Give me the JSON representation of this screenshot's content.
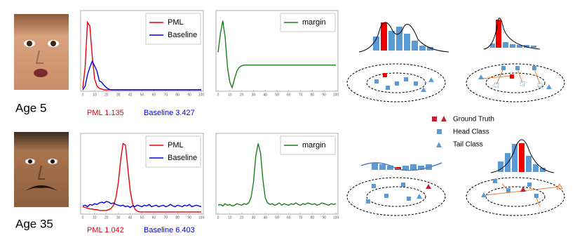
{
  "chart_data": [
    {
      "type": "line",
      "x": [
        0,
        2,
        4,
        6,
        8,
        10,
        12,
        14,
        16,
        18,
        20,
        22,
        24,
        26,
        28,
        30,
        32,
        34,
        36,
        38,
        40,
        42,
        44,
        46,
        48,
        50,
        52,
        54,
        56,
        58,
        60,
        62,
        64,
        66,
        68,
        70,
        72,
        74,
        76,
        78,
        80,
        82,
        84,
        86,
        88,
        90,
        92,
        94,
        96,
        98,
        100
      ],
      "xlim": [
        0,
        100
      ],
      "xticks": [
        0,
        10,
        20,
        30,
        40,
        50,
        60,
        70,
        80,
        90,
        100
      ],
      "ylim": [
        0,
        1
      ],
      "legend": "upper right",
      "series": [
        {
          "name": "PML",
          "color": "#e8000b",
          "values": [
            0.02,
            0.3,
            0.9,
            0.85,
            0.45,
            0.15,
            0.05,
            0.02,
            0.01,
            0,
            0,
            0,
            0,
            0,
            0,
            0,
            0,
            0,
            0,
            0,
            0,
            0,
            0,
            0,
            0,
            0,
            0,
            0,
            0,
            0,
            0,
            0,
            0,
            0,
            0,
            0,
            0,
            0,
            0,
            0,
            0,
            0,
            0,
            0,
            0,
            0,
            0,
            0,
            0,
            0,
            0
          ]
        },
        {
          "name": "Baseline",
          "color": "#0000e0",
          "values": [
            0,
            0.05,
            0.2,
            0.3,
            0.38,
            0.32,
            0.25,
            0.12,
            0.1,
            0.06,
            0.03,
            0.01,
            0,
            0,
            0,
            0,
            0,
            0,
            0,
            0,
            0,
            0,
            0,
            0,
            0,
            0,
            0,
            0,
            0,
            0,
            0,
            0,
            0,
            0,
            0,
            0,
            0,
            0,
            0,
            0,
            0,
            0,
            0,
            0,
            0,
            0,
            0,
            0,
            0,
            0,
            0
          ]
        }
      ]
    },
    {
      "type": "line",
      "x": [
        0,
        2,
        4,
        6,
        8,
        10,
        12,
        14,
        16,
        18,
        20,
        22,
        24,
        26,
        28,
        30,
        32,
        34,
        36,
        38,
        40,
        42,
        44,
        46,
        48,
        50,
        52,
        54,
        56,
        58,
        60,
        62,
        64,
        66,
        68,
        70,
        72,
        74,
        76,
        78,
        80,
        82,
        84,
        86,
        88,
        90,
        92,
        94,
        96,
        98,
        100
      ],
      "xlim": [
        0,
        100
      ],
      "xticks": [
        0,
        10,
        20,
        30,
        40,
        50,
        60,
        70,
        80,
        90,
        100
      ],
      "ylim": [
        0,
        1
      ],
      "legend": "upper right",
      "series": [
        {
          "name": "margin",
          "color": "#1a7f1a",
          "values": [
            0.5,
            0.75,
            0.92,
            0.7,
            0.3,
            0.1,
            0.03,
            0.15,
            0.25,
            0.3,
            0.32,
            0.33,
            0.33,
            0.33,
            0.33,
            0.33,
            0.33,
            0.33,
            0.33,
            0.33,
            0.33,
            0.33,
            0.33,
            0.33,
            0.33,
            0.33,
            0.33,
            0.33,
            0.33,
            0.33,
            0.33,
            0.33,
            0.33,
            0.33,
            0.33,
            0.33,
            0.33,
            0.33,
            0.33,
            0.33,
            0.33,
            0.33,
            0.33,
            0.33,
            0.33,
            0.33,
            0.33,
            0.33,
            0.33,
            0.33,
            0.33
          ]
        }
      ]
    },
    {
      "type": "line",
      "x": [
        0,
        2,
        4,
        6,
        8,
        10,
        12,
        14,
        16,
        18,
        20,
        22,
        24,
        26,
        28,
        30,
        32,
        34,
        36,
        38,
        40,
        42,
        44,
        46,
        48,
        50,
        52,
        54,
        56,
        58,
        60,
        62,
        64,
        66,
        68,
        70,
        72,
        74,
        76,
        78,
        80,
        82,
        84,
        86,
        88,
        90,
        92,
        94,
        96,
        98,
        100
      ],
      "xlim": [
        0,
        100
      ],
      "xticks": [
        0,
        10,
        20,
        30,
        40,
        50,
        60,
        70,
        80,
        90,
        100
      ],
      "ylim": [
        0,
        1
      ],
      "legend": "upper right",
      "series": [
        {
          "name": "PML",
          "color": "#e8000b",
          "values": [
            0.08,
            0.07,
            0.06,
            0.05,
            0.05,
            0.04,
            0.04,
            0.03,
            0.03,
            0.03,
            0.03,
            0.04,
            0.06,
            0.1,
            0.2,
            0.4,
            0.7,
            0.92,
            0.9,
            0.6,
            0.3,
            0.12,
            0.05,
            0.02,
            0.01,
            0.01,
            0.01,
            0.01,
            0.01,
            0.01,
            0.01,
            0.01,
            0.01,
            0.01,
            0.01,
            0.01,
            0.01,
            0.01,
            0.01,
            0.01,
            0.01,
            0.01,
            0.01,
            0.01,
            0.01,
            0.01,
            0.01,
            0.01,
            0.01,
            0.01,
            0.01
          ]
        },
        {
          "name": "Baseline",
          "color": "#0000e0",
          "values": [
            0.09,
            0.1,
            0.08,
            0.11,
            0.1,
            0.12,
            0.11,
            0.13,
            0.14,
            0.13,
            0.15,
            0.14,
            0.12,
            0.13,
            0.11,
            0.1,
            0.09,
            0.1,
            0.08,
            0.09,
            0.07,
            0.09,
            0.08,
            0.1,
            0.09,
            0.08,
            0.1,
            0.09,
            0.11,
            0.08,
            0.09,
            0.1,
            0.08,
            0.09,
            0.1,
            0.08,
            0.09,
            0.11,
            0.09,
            0.08,
            0.1,
            0.09,
            0.08,
            0.1,
            0.09,
            0.11,
            0.08,
            0.09,
            0.1,
            0.09,
            0.08
          ]
        }
      ]
    },
    {
      "type": "line",
      "x": [
        0,
        2,
        4,
        6,
        8,
        10,
        12,
        14,
        16,
        18,
        20,
        22,
        24,
        26,
        28,
        30,
        32,
        34,
        36,
        38,
        40,
        42,
        44,
        46,
        48,
        50,
        52,
        54,
        56,
        58,
        60,
        62,
        64,
        66,
        68,
        70,
        72,
        74,
        76,
        78,
        80,
        82,
        84,
        86,
        88,
        90,
        92,
        94,
        96,
        98,
        100
      ],
      "xlim": [
        0,
        100
      ],
      "xticks": [
        0,
        10,
        20,
        30,
        40,
        50,
        60,
        70,
        80,
        90,
        100
      ],
      "ylim": [
        0,
        1
      ],
      "legend": "upper right",
      "series": [
        {
          "name": "margin",
          "color": "#1a7f1a",
          "values": [
            0.1,
            0.11,
            0.09,
            0.12,
            0.1,
            0.11,
            0.09,
            0.1,
            0.12,
            0.11,
            0.1,
            0.12,
            0.11,
            0.13,
            0.2,
            0.4,
            0.75,
            0.92,
            0.8,
            0.45,
            0.2,
            0.13,
            0.11,
            0.12,
            0.1,
            0.11,
            0.13,
            0.1,
            0.12,
            0.11,
            0.1,
            0.12,
            0.11,
            0.13,
            0.11,
            0.1,
            0.12,
            0.11,
            0.13,
            0.12,
            0.11,
            0.12,
            0.1,
            0.11,
            0.13,
            0.12,
            0.11,
            0.1,
            0.12,
            0.11,
            0.12
          ]
        }
      ]
    }
  ],
  "figure": {
    "rows": [
      {
        "age": "Age 5",
        "pml": "PML 1.135",
        "baseline": "Baseline 3.427"
      },
      {
        "age": "Age 35",
        "pml": "PML 1.042",
        "baseline": "Baseline 6.403"
      }
    ],
    "legend": [
      "Ground Truth",
      "Head Class",
      "Tail Class"
    ]
  }
}
